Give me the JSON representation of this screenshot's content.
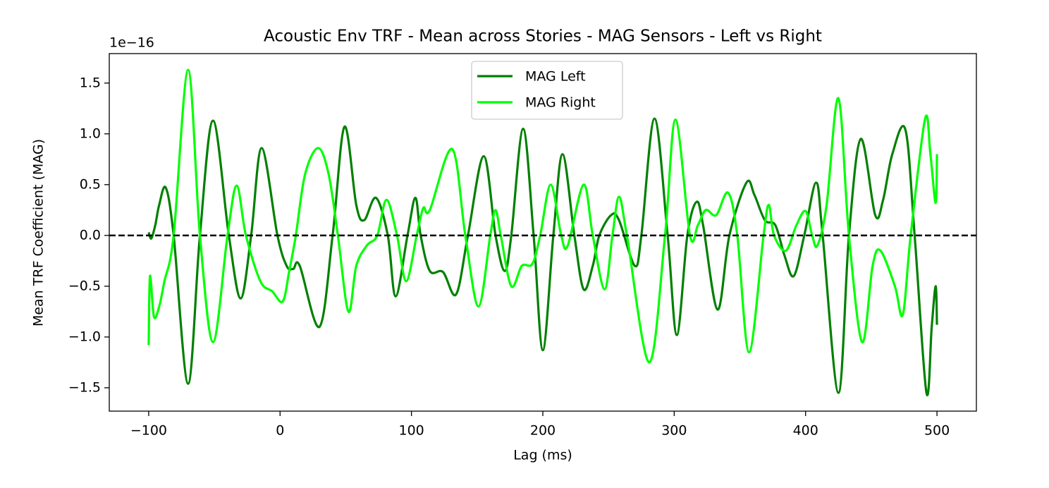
{
  "chart_data": {
    "type": "line",
    "title": "Acoustic Env TRF - Mean across Stories - MAG Sensors - Left vs Right",
    "x_label": "Lag (ms)",
    "y_label": "Mean TRF Coefficient (MAG)",
    "y_offset_text": "1e−16",
    "xlim": [
      -130,
      530
    ],
    "ylim": [
      -1.73,
      1.79
    ],
    "xticks": [
      {
        "value": -100,
        "label": "−100"
      },
      0,
      100,
      200,
      300,
      400,
      500
    ],
    "yticks": [
      {
        "value": -1.5,
        "label": "−1.5"
      },
      {
        "value": -1.0,
        "label": "−1.0"
      },
      {
        "value": -0.5,
        "label": "−0.5"
      },
      {
        "value": 0,
        "label": "0.0"
      },
      0.5,
      {
        "value": 1.0,
        "label": "1.0"
      },
      1.5
    ],
    "hline": 0,
    "legend_loc": "upper center",
    "series": [
      {
        "name": "MAG Left",
        "color": "#008000",
        "x": [
          -100,
          -98,
          -95,
          -92,
          -87,
          -81,
          -70,
          -61,
          -51,
          -39,
          -30,
          -22,
          -14,
          -2,
          5,
          10,
          15,
          30,
          40,
          49,
          58,
          64,
          73,
          82,
          88,
          97,
          103,
          107,
          114,
          124,
          134,
          143,
          155,
          164,
          171,
          176,
          185,
          193,
          200,
          208,
          215,
          224,
          231,
          238,
          243,
          252,
          258,
          270,
          275,
          285,
          295,
          302,
          310,
          317,
          322,
          333,
          342,
          355,
          361,
          369,
          377,
          384,
          391,
          399,
          408,
          413,
          425,
          433,
          442,
          453,
          459,
          466,
          476,
          483,
          492,
          496,
          499,
          500
        ],
        "values": [
          0.03,
          -0.03,
          0.1,
          0.3,
          0.47,
          0,
          -1.46,
          0,
          1.13,
          0,
          -0.62,
          0,
          0.86,
          0,
          -0.3,
          -0.33,
          -0.3,
          -0.9,
          0,
          1.07,
          0.3,
          0.15,
          0.37,
          0,
          -0.6,
          0,
          0.37,
          0,
          -0.35,
          -0.36,
          -0.58,
          0,
          0.78,
          0,
          -0.35,
          0,
          1.05,
          0,
          -1.13,
          0,
          0.8,
          0,
          -0.53,
          -0.3,
          0,
          0.2,
          0.15,
          -0.3,
          0,
          1.15,
          0,
          -0.98,
          0,
          0.33,
          0.1,
          -0.73,
          0,
          0.52,
          0.4,
          0.15,
          0.1,
          -0.2,
          -0.4,
          0,
          0.52,
          0,
          -1.55,
          0,
          0.95,
          0.2,
          0.35,
          0.8,
          1.04,
          0,
          -1.55,
          -0.9,
          -0.5,
          -0.88
        ]
      },
      {
        "name": "MAG Right",
        "color": "#00ff00",
        "x": [
          -100,
          -99,
          -96,
          -92,
          -88,
          -81,
          -70,
          -61,
          -51,
          -40,
          -33,
          -26,
          -15,
          -6,
          2,
          7,
          12,
          19,
          29,
          37,
          44,
          52,
          58,
          66,
          74,
          81,
          89,
          96,
          104,
          109,
          114,
          131,
          141,
          151,
          160,
          164,
          168,
          176,
          184,
          192,
          198,
          206,
          214,
          219,
          231,
          238,
          247,
          253,
          258,
          264,
          281,
          293,
          301,
          312,
          318,
          324,
          332,
          341,
          348,
          357,
          368,
          372,
          376,
          385,
          393,
          400,
          405,
          409,
          416,
          425,
          433,
          443,
          451,
          457,
          468,
          474,
          480,
          491,
          495,
          499,
          500
        ],
        "values": [
          -1.08,
          -0.4,
          -0.8,
          -0.7,
          -0.45,
          0,
          1.63,
          0,
          -1.05,
          0,
          0.49,
          0,
          -0.45,
          -0.55,
          -0.65,
          -0.35,
          0,
          0.6,
          0.86,
          0.6,
          0,
          -0.75,
          -0.3,
          -0.1,
          0,
          0.35,
          0,
          -0.45,
          0,
          0.27,
          0.25,
          0.85,
          0,
          -0.7,
          0,
          0.25,
          0,
          -0.5,
          -0.3,
          -0.28,
          0,
          0.5,
          0,
          -0.1,
          0.5,
          0,
          -0.53,
          0,
          0.38,
          0,
          -1.25,
          0,
          1.14,
          0,
          0.1,
          0.25,
          0.2,
          0.42,
          0,
          -1.15,
          0,
          0.3,
          0,
          -0.15,
          0.1,
          0.24,
          0,
          -0.1,
          0.3,
          1.35,
          0,
          -1.05,
          -0.3,
          -0.15,
          -0.5,
          -0.78,
          0,
          1.15,
          0.8,
          0.32,
          0.8
        ]
      }
    ]
  }
}
